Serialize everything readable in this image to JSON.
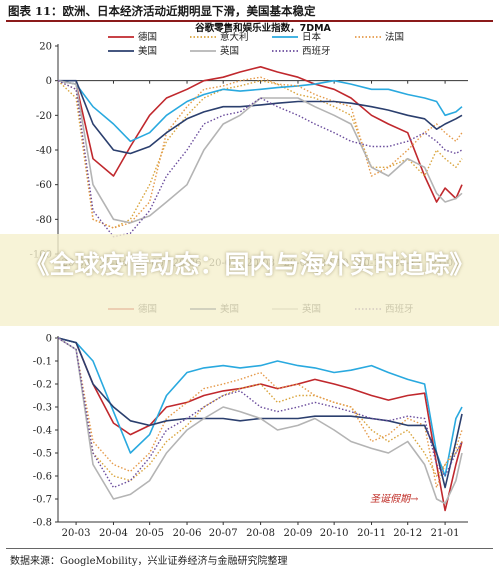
{
  "figure": {
    "title": "图表 11：欧洲、日本经济活动近期明显下滑，美国基本稳定",
    "source": "数据来源：GoogleMobility，兴业证券经济与金融研究院整理"
  },
  "overlay": {
    "text": "《全球疫情动态：国内与海外实时追踪》"
  },
  "colors": {
    "德国": "#c0282d",
    "意大利": "#d9a43c",
    "日本": "#29a9df",
    "法国": "#e59a4a",
    "美国": "#2b3f6e",
    "英国": "#b4b4b4",
    "西班牙": "#6a4c9c"
  },
  "chart_data": [
    {
      "type": "line",
      "title": "谷歌零售和娱乐业指数，7DMA",
      "x_ticks": [
        "20-03",
        "20-04",
        "20-05",
        "20-06",
        "20-07",
        "20-08",
        "20-09",
        "20-10",
        "20-11",
        "20-12",
        "21-01"
      ],
      "x": [
        "20-02-15",
        "20-03-01",
        "20-03-15",
        "20-04-01",
        "20-04-15",
        "20-05-01",
        "20-05-15",
        "20-06-01",
        "20-06-15",
        "20-07-01",
        "20-07-15",
        "20-08-01",
        "20-08-15",
        "20-09-01",
        "20-09-15",
        "20-10-01",
        "20-10-15",
        "20-11-01",
        "20-11-15",
        "20-12-01",
        "20-12-15",
        "20-12-25",
        "21-01-01",
        "21-01-10",
        "21-01-15"
      ],
      "ylim": [
        -100,
        20
      ],
      "yticks": [
        20,
        0,
        -20,
        -40,
        -60,
        -80,
        -100
      ],
      "grid": false,
      "legend": "top",
      "legend_order": [
        "德国",
        "意大利",
        "日本",
        "法国",
        "美国",
        "英国",
        "西班牙"
      ],
      "series": [
        {
          "name": "德国",
          "style": "solid",
          "values": [
            0,
            -2,
            -45,
            -55,
            -38,
            -20,
            -10,
            -5,
            0,
            2,
            5,
            8,
            5,
            2,
            -2,
            -5,
            -10,
            -20,
            -25,
            -30,
            -55,
            -70,
            -62,
            -68,
            -60
          ]
        },
        {
          "name": "意大利",
          "style": "dotted",
          "values": [
            0,
            -10,
            -80,
            -85,
            -80,
            -60,
            -35,
            -20,
            -10,
            -5,
            -3,
            0,
            -2,
            -8,
            -10,
            -15,
            -20,
            -50,
            -50,
            -45,
            -55,
            -40,
            -45,
            -50,
            -45
          ]
        },
        {
          "name": "日本",
          "style": "solid",
          "values": [
            0,
            -2,
            -15,
            -25,
            -35,
            -30,
            -20,
            -12,
            -8,
            -5,
            -6,
            -5,
            -4,
            -3,
            -2,
            0,
            -2,
            -5,
            -5,
            -8,
            -10,
            -12,
            -20,
            -18,
            -15
          ]
        },
        {
          "name": "法国",
          "style": "dotted",
          "values": [
            0,
            -5,
            -80,
            -85,
            -82,
            -70,
            -30,
            -15,
            -5,
            -3,
            0,
            2,
            -2,
            -3,
            -8,
            -12,
            -15,
            -55,
            -50,
            -40,
            -30,
            -25,
            -30,
            -35,
            -30
          ]
        },
        {
          "name": "美国",
          "style": "solid",
          "values": [
            0,
            0,
            -25,
            -40,
            -42,
            -38,
            -30,
            -22,
            -18,
            -15,
            -15,
            -14,
            -13,
            -12,
            -12,
            -12,
            -13,
            -15,
            -17,
            -20,
            -22,
            -28,
            -25,
            -22,
            -20
          ]
        },
        {
          "name": "英国",
          "style": "solid",
          "values": [
            0,
            -2,
            -60,
            -80,
            -82,
            -78,
            -70,
            -60,
            -40,
            -25,
            -20,
            -10,
            -10,
            -10,
            -15,
            -20,
            -25,
            -50,
            -55,
            -45,
            -50,
            -65,
            -70,
            -68,
            -65
          ]
        },
        {
          "name": "西班牙",
          "style": "dotted",
          "values": [
            0,
            -5,
            -75,
            -90,
            -88,
            -75,
            -55,
            -40,
            -25,
            -20,
            -18,
            -10,
            -15,
            -20,
            -25,
            -30,
            -35,
            -38,
            -38,
            -35,
            -30,
            -35,
            -40,
            -42,
            -40
          ]
        }
      ]
    },
    {
      "type": "line",
      "title": "",
      "x_ticks": [
        "20-03",
        "20-04",
        "20-05",
        "20-06",
        "20-07",
        "20-08",
        "20-09",
        "20-10",
        "20-11",
        "20-12",
        "21-01"
      ],
      "x": [
        "20-02-15",
        "20-03-01",
        "20-03-15",
        "20-04-01",
        "20-04-15",
        "20-05-01",
        "20-05-15",
        "20-06-01",
        "20-06-15",
        "20-07-01",
        "20-07-15",
        "20-08-01",
        "20-08-15",
        "20-09-01",
        "20-09-15",
        "20-10-01",
        "20-10-15",
        "20-11-01",
        "20-11-15",
        "20-12-01",
        "20-12-15",
        "20-12-25",
        "21-01-01",
        "21-01-10",
        "21-01-15"
      ],
      "ylim": [
        -0.8,
        0
      ],
      "yticks": [
        0,
        -0.1,
        -0.2,
        -0.3,
        -0.4,
        -0.5,
        -0.6,
        -0.7,
        -0.8
      ],
      "grid": false,
      "legend": "top",
      "legend_order": [
        "德国",
        "美国",
        "英国",
        "西班牙"
      ],
      "annotation": "圣诞假期→",
      "series": [
        {
          "name": "德国",
          "style": "solid",
          "values": [
            0,
            -0.02,
            -0.2,
            -0.37,
            -0.42,
            -0.38,
            -0.3,
            -0.28,
            -0.25,
            -0.23,
            -0.22,
            -0.2,
            -0.22,
            -0.2,
            -0.18,
            -0.2,
            -0.22,
            -0.25,
            -0.27,
            -0.25,
            -0.24,
            -0.55,
            -0.75,
            -0.55,
            -0.45
          ]
        },
        {
          "name": "意大利",
          "style": "dotted",
          "values": [
            0,
            -0.05,
            -0.5,
            -0.6,
            -0.62,
            -0.55,
            -0.45,
            -0.38,
            -0.3,
            -0.25,
            -0.22,
            -0.2,
            -0.28,
            -0.25,
            -0.25,
            -0.28,
            -0.3,
            -0.4,
            -0.45,
            -0.4,
            -0.5,
            -0.6,
            -0.55,
            -0.5,
            -0.45
          ]
        },
        {
          "name": "日本",
          "style": "solid",
          "values": [
            0,
            -0.02,
            -0.1,
            -0.32,
            -0.5,
            -0.42,
            -0.25,
            -0.15,
            -0.13,
            -0.12,
            -0.13,
            -0.12,
            -0.1,
            -0.12,
            -0.13,
            -0.15,
            -0.14,
            -0.12,
            -0.15,
            -0.18,
            -0.2,
            -0.5,
            -0.6,
            -0.35,
            -0.3
          ]
        },
        {
          "name": "法国",
          "style": "dotted",
          "values": [
            0,
            -0.05,
            -0.45,
            -0.55,
            -0.58,
            -0.5,
            -0.35,
            -0.28,
            -0.22,
            -0.2,
            -0.18,
            -0.15,
            -0.22,
            -0.2,
            -0.25,
            -0.28,
            -0.3,
            -0.45,
            -0.42,
            -0.35,
            -0.38,
            -0.65,
            -0.55,
            -0.48,
            -0.4
          ]
        },
        {
          "name": "美国",
          "style": "solid",
          "values": [
            0,
            -0.02,
            -0.2,
            -0.3,
            -0.36,
            -0.38,
            -0.36,
            -0.35,
            -0.35,
            -0.35,
            -0.36,
            -0.35,
            -0.35,
            -0.35,
            -0.34,
            -0.34,
            -0.34,
            -0.35,
            -0.36,
            -0.38,
            -0.38,
            -0.5,
            -0.65,
            -0.45,
            -0.33
          ]
        },
        {
          "name": "英国",
          "style": "solid",
          "values": [
            0,
            -0.05,
            -0.55,
            -0.7,
            -0.68,
            -0.62,
            -0.5,
            -0.4,
            -0.35,
            -0.3,
            -0.32,
            -0.35,
            -0.4,
            -0.38,
            -0.35,
            -0.4,
            -0.45,
            -0.48,
            -0.5,
            -0.45,
            -0.55,
            -0.7,
            -0.72,
            -0.62,
            -0.5
          ]
        },
        {
          "name": "西班牙",
          "style": "dotted",
          "values": [
            0,
            -0.05,
            -0.5,
            -0.65,
            -0.62,
            -0.52,
            -0.4,
            -0.35,
            -0.3,
            -0.25,
            -0.23,
            -0.3,
            -0.32,
            -0.3,
            -0.28,
            -0.3,
            -0.32,
            -0.35,
            -0.36,
            -0.34,
            -0.35,
            -0.55,
            -0.6,
            -0.5,
            -0.45
          ]
        }
      ]
    }
  ]
}
